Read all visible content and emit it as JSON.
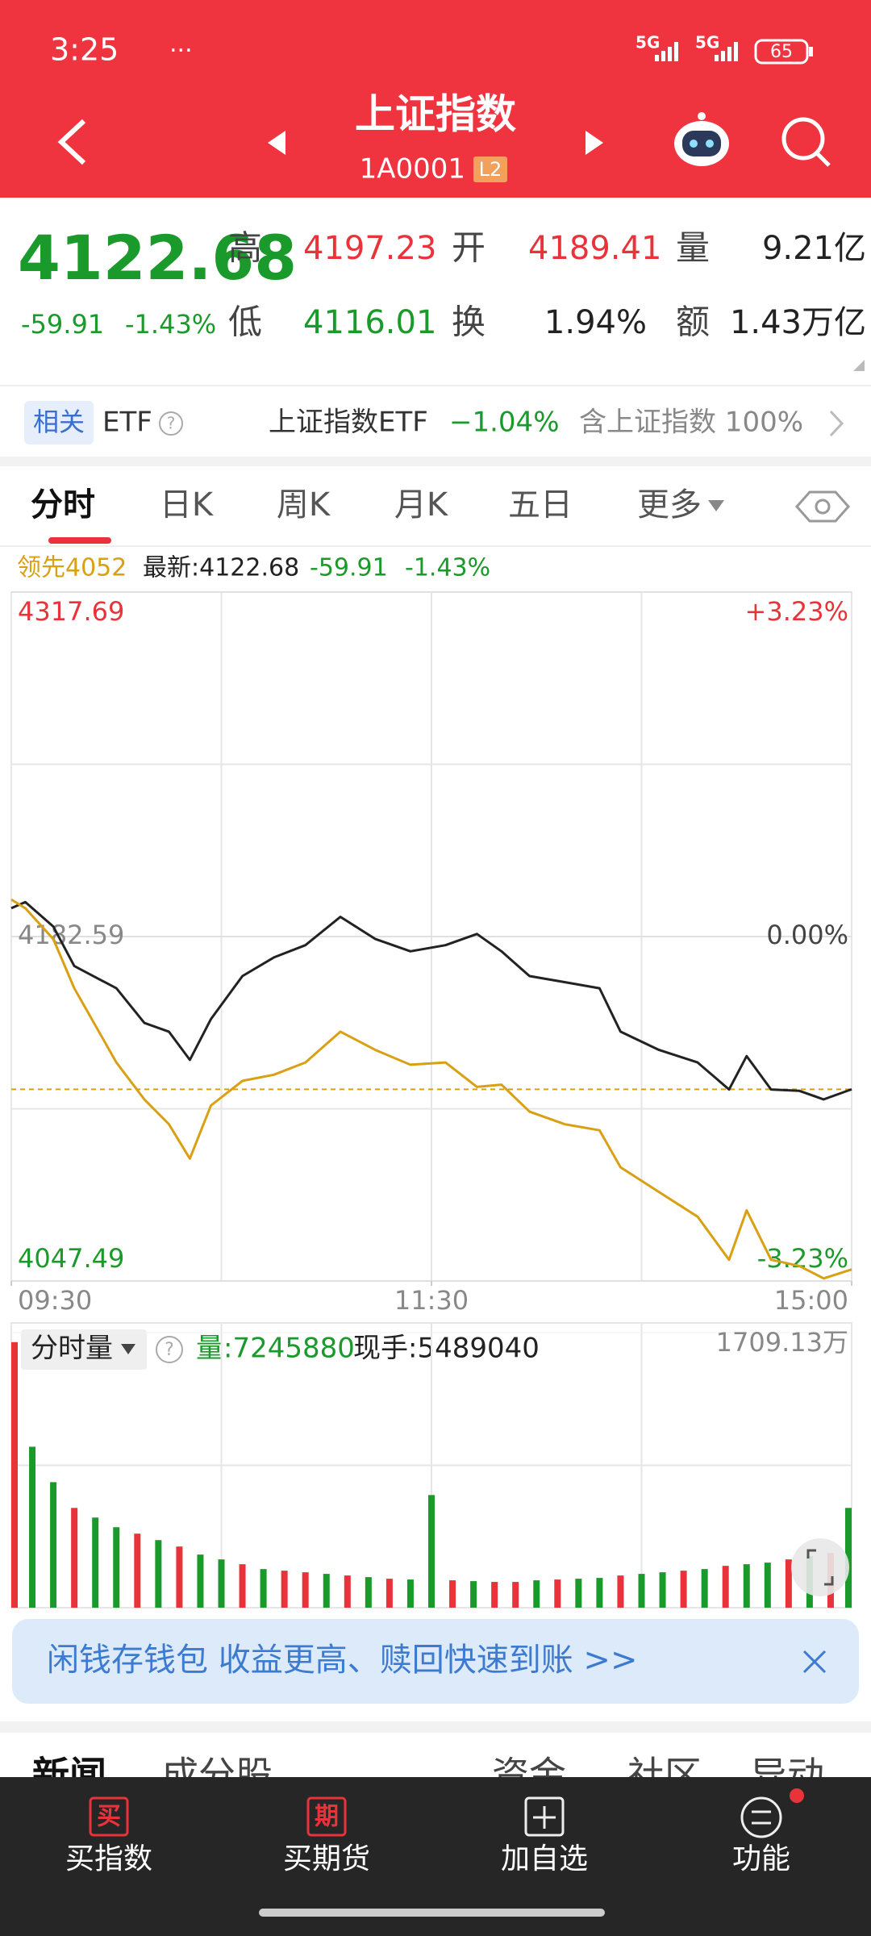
{
  "status_bar": {
    "time": "3:25",
    "network": [
      "5G",
      "5G"
    ],
    "battery": "65"
  },
  "header": {
    "title": "上证指数",
    "code": "1A0001",
    "badge": "L2"
  },
  "quote": {
    "price": "4122.68",
    "change": "-59.91",
    "change_pct": "-1.43%",
    "high_label": "高",
    "high": "4197.23",
    "open_label": "开",
    "open": "4189.41",
    "volume_label": "量",
    "volume": "9.21亿",
    "low_label": "低",
    "low": "4116.01",
    "turnover_label": "换",
    "turnover": "1.94%",
    "amount_label": "额",
    "amount": "1.43万亿"
  },
  "etf": {
    "tag": "相关",
    "label": "ETF",
    "name": "上证指数ETF",
    "change": "−1.04%",
    "holding": "含上证指数 100%"
  },
  "tabs": [
    "分时",
    "日K",
    "周K",
    "月K",
    "五日",
    "更多"
  ],
  "legend_line": {
    "lead": "领先4052",
    "latest": "最新:4122.68",
    "change": "-59.91",
    "pct": "-1.43%"
  },
  "volume_header": {
    "label": "分时量",
    "volume": "量:7245880",
    "current": "现手:5489040"
  },
  "banner": {
    "text": "闲钱存钱包 收益更高、赎回快速到账 >>"
  },
  "news_tabs": [
    "新闻",
    "成分股",
    "资金",
    "社区",
    "异动"
  ],
  "bottom_nav": {
    "icons": [
      "买",
      "期"
    ],
    "labels": [
      "买指数",
      "买期货",
      "加自选",
      "功能"
    ]
  },
  "chart_data": [
    {
      "type": "line",
      "x": [
        0,
        4,
        12,
        18,
        30,
        38,
        45,
        51,
        57,
        66,
        75,
        84,
        94,
        104,
        114,
        124,
        133,
        140,
        148,
        158,
        168,
        174,
        185,
        196,
        205,
        210,
        217,
        225,
        232,
        240
      ],
      "xlim": [
        0,
        240
      ],
      "xticks": [
        {
          "value": 0,
          "label": "09:30"
        },
        {
          "value": 120,
          "label": "11:30"
        },
        {
          "value": 240,
          "label": "15:00"
        }
      ],
      "ylim": [
        4047.49,
        4317.69
      ],
      "yticks": [
        4047.49,
        4182.59,
        4317.69
      ],
      "y2lim": [
        -3.23,
        3.23
      ],
      "y2ticks": [
        {
          "value": -3.23,
          "label": "-3.23%"
        },
        {
          "value": 0,
          "label": "0.00%"
        },
        {
          "value": 3.23,
          "label": "+3.23%"
        }
      ],
      "reference_line": 4122.68,
      "series": [
        {
          "color": "#222222",
          "values": [
            4193.7,
            4196.1,
            4186.5,
            4171.0,
            4162.3,
            4148.7,
            4145.3,
            4134.2,
            4150.2,
            4167.1,
            4174.4,
            4179.2,
            4190.3,
            4181.6,
            4176.8,
            4179.2,
            4183.6,
            4176.8,
            4167.1,
            4164.7,
            4162.3,
            4145.3,
            4138.1,
            4133.2,
            4122.6,
            4135.7,
            4122.6,
            4122.1,
            4118.7,
            4122.68
          ]
        },
        {
          "color": "#d9a014",
          "values": [
            4197.1,
            4193.7,
            4181.6,
            4162.3,
            4133.2,
            4118.7,
            4109.0,
            4095.5,
            4116.3,
            4126.0,
            4128.4,
            4133.2,
            4145.3,
            4138.1,
            4132.3,
            4133.2,
            4123.6,
            4124.5,
            4113.9,
            4109.0,
            4106.6,
            4092.1,
            4082.4,
            4072.7,
            4055.8,
            4075.2,
            4055.8,
            4053.4,
            4048.5,
            4052
          ]
        }
      ]
    },
    {
      "type": "bar",
      "x": [
        0,
        6,
        12,
        18,
        24,
        30,
        36,
        42,
        48,
        54,
        60,
        66,
        72,
        78,
        84,
        90,
        96,
        102,
        108,
        114,
        120,
        126,
        132,
        138,
        144,
        150,
        156,
        162,
        168,
        174,
        180,
        186,
        192,
        198,
        204,
        210,
        216,
        222,
        228,
        234,
        240
      ],
      "xlim": [
        0,
        240
      ],
      "ylim": [
        0,
        1709.13
      ],
      "yticks": [
        {
          "value": 1709.13,
          "label": "1709.13万"
        }
      ],
      "values": [
        1650,
        1000,
        780,
        620,
        560,
        500,
        460,
        420,
        380,
        330,
        300,
        270,
        240,
        230,
        220,
        210,
        200,
        190,
        180,
        175,
        700,
        170,
        165,
        160,
        160,
        170,
        175,
        180,
        185,
        200,
        210,
        220,
        230,
        240,
        260,
        270,
        280,
        300,
        320,
        340,
        620
      ],
      "colors": [
        "#e8333b",
        "#1a9a2a",
        "#1a9a2a",
        "#e8333b",
        "#1a9a2a",
        "#1a9a2a",
        "#e8333b",
        "#1a9a2a",
        "#e8333b",
        "#1a9a2a",
        "#1a9a2a",
        "#e8333b",
        "#1a9a2a",
        "#e8333b",
        "#e8333b",
        "#1a9a2a",
        "#e8333b",
        "#1a9a2a",
        "#e8333b",
        "#1a9a2a",
        "#1a9a2a",
        "#e8333b",
        "#1a9a2a",
        "#e8333b",
        "#e8333b",
        "#1a9a2a",
        "#e8333b",
        "#1a9a2a",
        "#1a9a2a",
        "#e8333b",
        "#1a9a2a",
        "#1a9a2a",
        "#e8333b",
        "#1a9a2a",
        "#e8333b",
        "#1a9a2a",
        "#1a9a2a",
        "#e8333b",
        "#1a9a2a",
        "#e8333b",
        "#1a9a2a"
      ]
    }
  ]
}
